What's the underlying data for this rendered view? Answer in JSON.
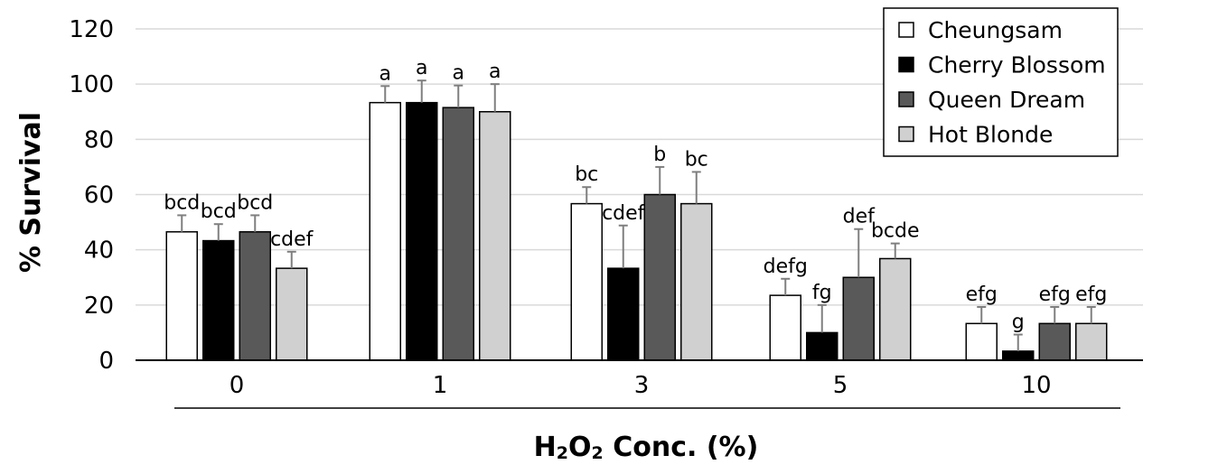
{
  "chart_data": {
    "type": "bar",
    "title": "",
    "xlabel": "H2O2 Conc. (%)",
    "xlabel_parts": {
      "pre": "H",
      "sub1": "2",
      "mid": "O",
      "sub2": "2",
      "post": " Conc. (%)"
    },
    "ylabel": "% Survival",
    "ylim": [
      0,
      120
    ],
    "yticks": [
      0,
      20,
      40,
      60,
      80,
      100,
      120
    ],
    "grid": true,
    "legend_position": "top-right",
    "categories": [
      "0",
      "1",
      "3",
      "5",
      "10"
    ],
    "series": [
      {
        "name": "Cheungsam",
        "color": "#ffffff",
        "values": [
          46.5,
          93.3,
          56.7,
          23.5,
          13.3
        ],
        "errors": [
          6,
          6,
          6,
          6,
          6
        ],
        "labels": [
          "bcd",
          "a",
          "bc",
          "defg",
          "efg"
        ]
      },
      {
        "name": "Cherry Blossom",
        "color": "#000000",
        "values": [
          43.3,
          93.3,
          33.3,
          10,
          3.3
        ],
        "errors": [
          6,
          8,
          15.5,
          10,
          6
        ],
        "labels": [
          "bcd",
          "a",
          "cdef",
          "fg",
          "g"
        ]
      },
      {
        "name": "Queen Dream",
        "color": "#595959",
        "values": [
          46.5,
          91.5,
          60,
          30,
          13.3
        ],
        "errors": [
          6,
          8,
          10,
          17.5,
          6
        ],
        "labels": [
          "bcd",
          "a",
          "b",
          "def",
          "efg"
        ]
      },
      {
        "name": "Hot Blonde",
        "color": "#d0d0d0",
        "values": [
          33.3,
          90,
          56.7,
          36.8,
          13.3
        ],
        "errors": [
          6,
          10,
          11.5,
          5.5,
          6
        ],
        "labels": [
          "cdef",
          "a",
          "bc",
          "bcde",
          "efg"
        ]
      }
    ]
  }
}
